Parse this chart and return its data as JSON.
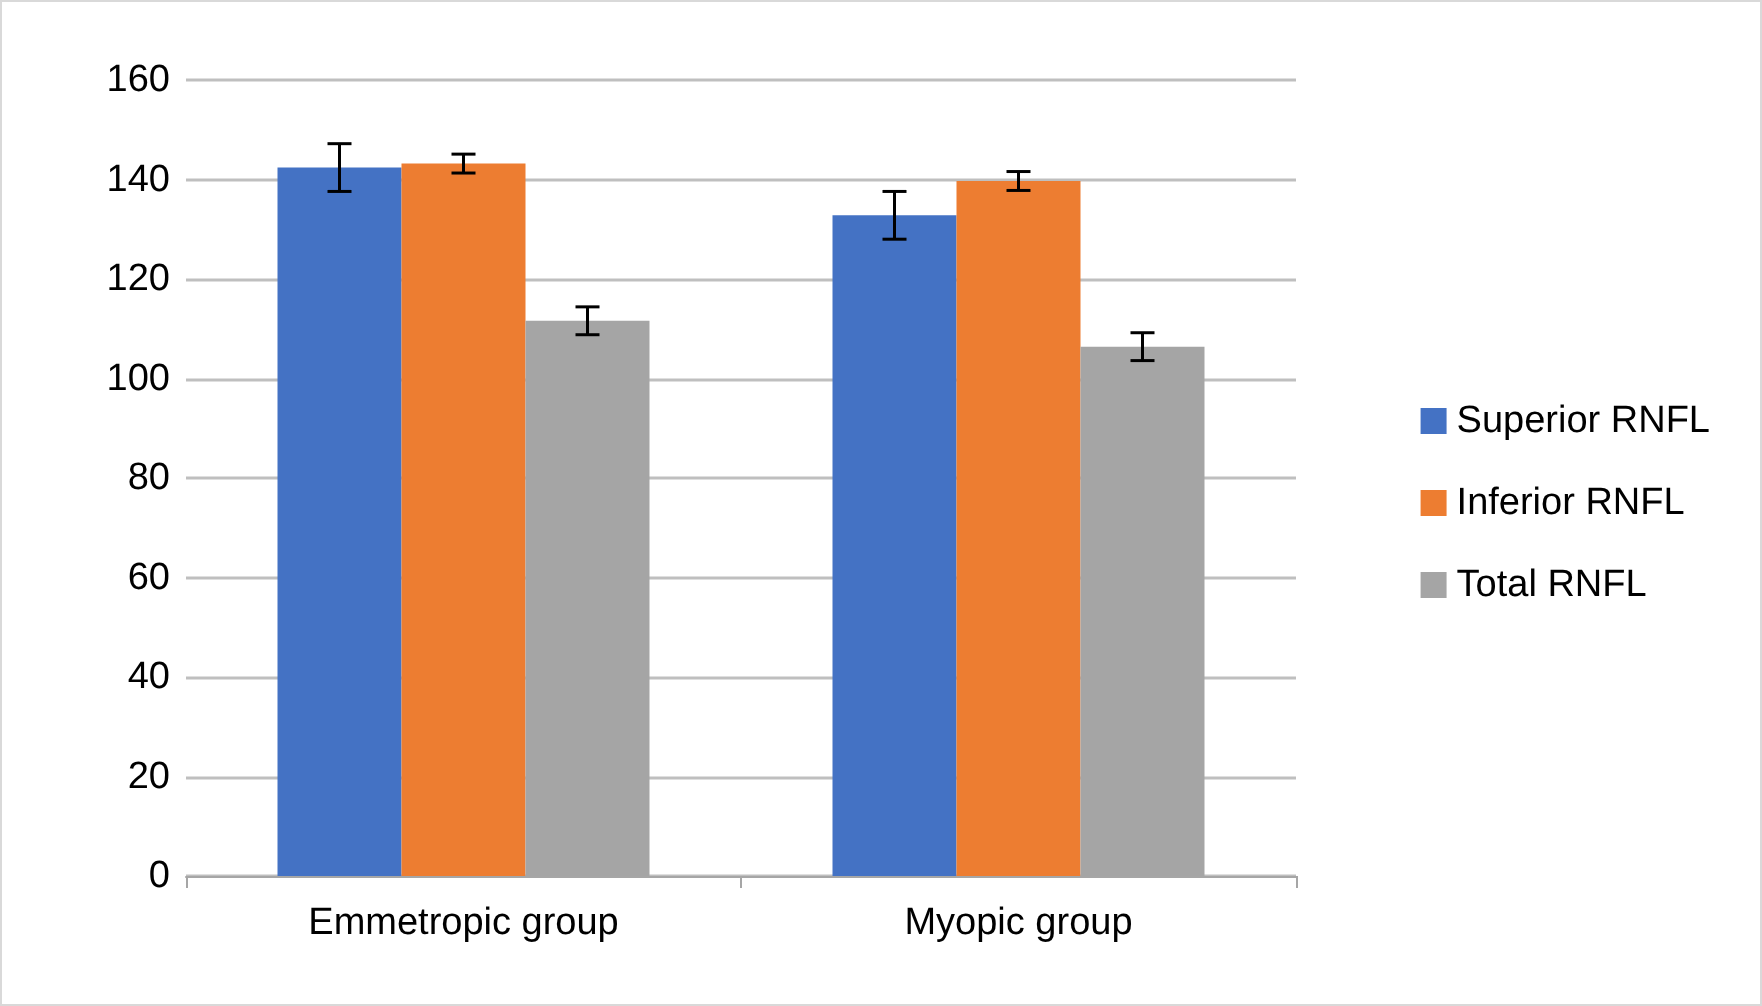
{
  "chart_data": {
    "type": "bar",
    "categories": [
      "Emmetropic group",
      "Myopic group"
    ],
    "series": [
      {
        "name": "Superior RNFL",
        "color": "#4472c4",
        "values": [
          142.4,
          132.8
        ],
        "errors": [
          4.8,
          4.8
        ]
      },
      {
        "name": "Inferior RNFL",
        "color": "#ed7d31",
        "values": [
          143.2,
          139.7
        ],
        "errors": [
          1.9,
          1.9
        ]
      },
      {
        "name": "Total RNFL",
        "color": "#a5a5a5",
        "values": [
          111.6,
          106.4
        ],
        "errors": [
          2.8,
          2.8
        ]
      }
    ],
    "ylim": [
      0,
      160
    ],
    "yticks": [
      0,
      20,
      40,
      60,
      80,
      100,
      120,
      140,
      160
    ],
    "grid": "y",
    "legend": "right"
  }
}
